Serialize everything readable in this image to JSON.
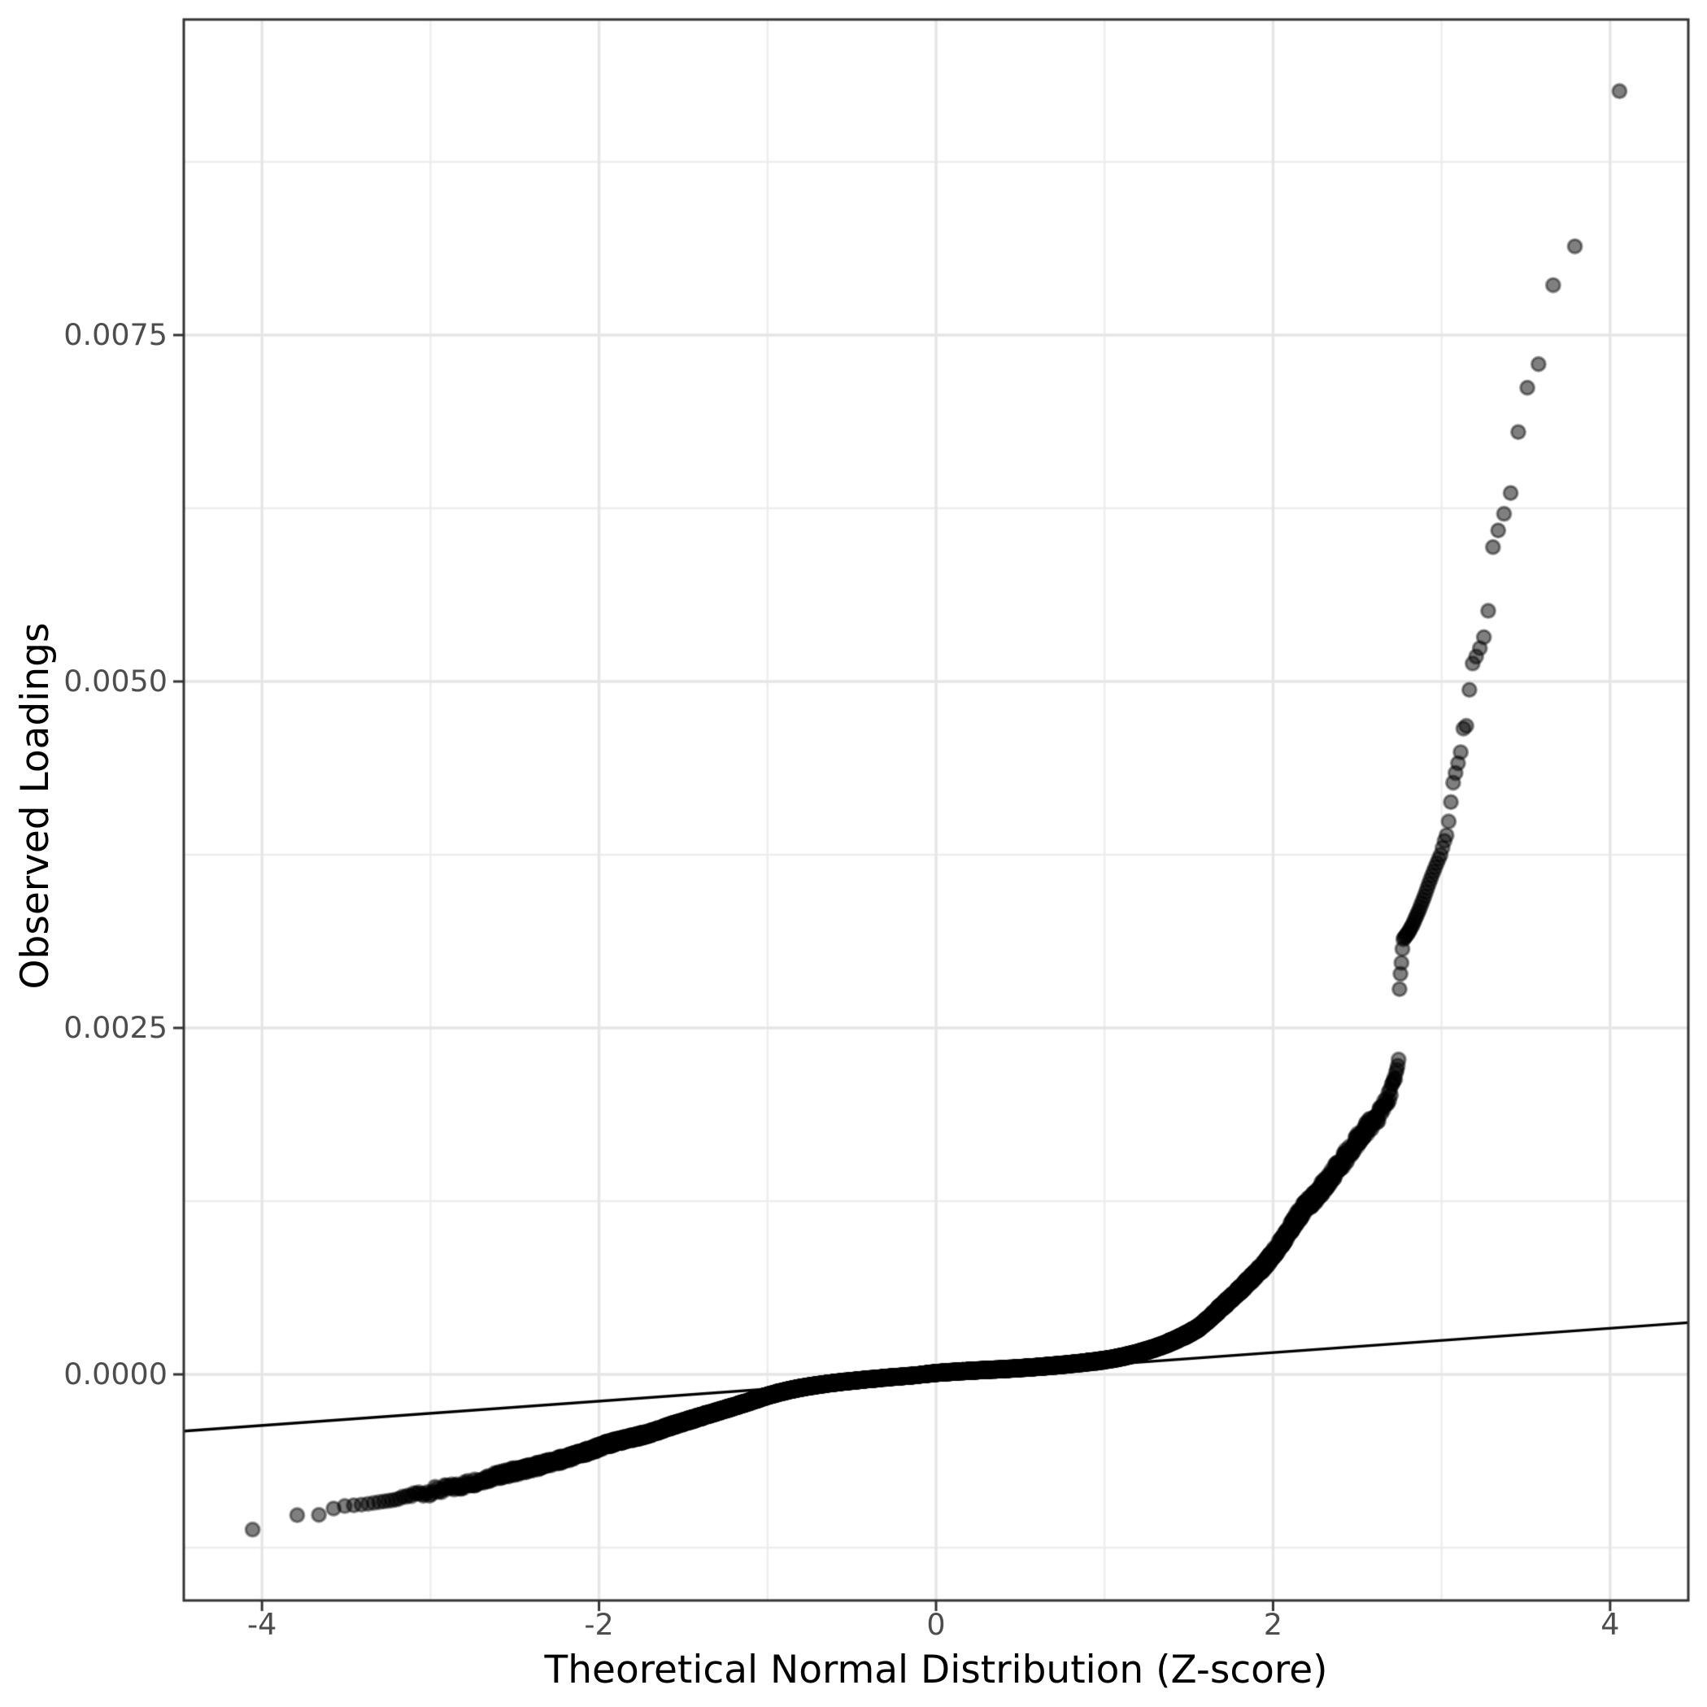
{
  "chart_data": {
    "type": "scatter",
    "subtype": "qq-plot",
    "title": "",
    "xlabel": "Theoretical Normal Distribution (Z-score)",
    "ylabel": "Observed Loadings",
    "x_ticks": [
      {
        "value": -4,
        "label": "-4"
      },
      {
        "value": -2,
        "label": "-2"
      },
      {
        "value": 0,
        "label": "0"
      },
      {
        "value": 2,
        "label": "2"
      },
      {
        "value": 4,
        "label": "4"
      }
    ],
    "y_ticks": [
      {
        "value": 0.0075,
        "label": "0.0075"
      },
      {
        "value": 0.005,
        "label": "0.0050"
      },
      {
        "value": 0.0025,
        "label": "0.0025"
      },
      {
        "value": 0.0,
        "label": "0.0000"
      }
    ],
    "x_minor": [
      -3,
      -1,
      1,
      3
    ],
    "y_minor": [
      0.00875,
      0.00625,
      0.00375,
      0.00125,
      -0.00125
    ],
    "xlim": [
      -4.464,
      4.464
    ],
    "ylim": [
      -0.0016315,
      0.009777
    ],
    "grid": true,
    "legend": null,
    "n_points": 20000,
    "x_distribution": "normal plotting positions qnorm((i-0.5)/n), i=1..n",
    "reference_line": {
      "slope": 8.77e-05,
      "intercept": -1.8e-05,
      "color": "#000000"
    },
    "point_style": {
      "radius": 8.4,
      "fill": "rgba(0,0,0,0.50)",
      "stroke": "rgba(0,0,0,0.42)",
      "stroke_width": 3.2
    },
    "upper_tail_loadings": [
      0.00926,
      0.00814,
      0.00786,
      0.00729,
      0.00712,
      0.0068,
      0.00636,
      0.00621,
      0.00609,
      0.00597,
      0.00551,
      0.00532,
      0.00524,
      0.00518,
      0.00513,
      0.00494,
      0.00468,
      0.00466,
      0.00449,
      0.00441,
      0.00434,
      0.00427,
      0.00413,
      0.00399,
      0.00389,
      0.00385,
      0.0038,
      0.00375,
      0.00372,
      0.00369,
      0.00366,
      0.00363,
      0.0036,
      0.00357,
      0.00354,
      0.00351,
      0.00348,
      0.00345,
      0.003425,
      0.0034,
      0.003375,
      0.00335,
      0.00333,
      0.00331,
      0.00329,
      0.00327,
      0.00325,
      0.003235,
      0.00322,
      0.003205,
      0.00319,
      0.00318,
      0.00317,
      0.00316,
      0.00315,
      0.00314,
      0.00307,
      0.00297,
      0.00289,
      0.00278
    ],
    "lower_tail_loadings": [
      -0.00112,
      -0.001016,
      -0.001014,
      -0.000968,
      -0.00095,
      -0.000945,
      -0.00094,
      -0.000934,
      -0.000928,
      -0.000922,
      -0.000917,
      -0.000912,
      -0.000908
    ],
    "quantile_curve": {
      "z": [
        -3.205,
        -3.14,
        -3.0,
        -2.9,
        -2.78,
        -2.66,
        -2.54,
        -2.42,
        -2.3,
        -2.18,
        -2.06,
        -1.94,
        -1.82,
        -1.7,
        -1.58,
        -1.45,
        -1.33,
        -1.21,
        -1.09,
        -0.97,
        -0.85,
        -0.73,
        -0.61,
        -0.49,
        -0.37,
        -0.25,
        -0.12,
        0.0,
        0.12,
        0.23,
        0.35,
        0.47,
        0.59,
        0.71,
        0.83,
        0.95,
        1.07,
        1.19,
        1.31,
        1.44,
        1.56,
        1.68,
        1.82,
        1.97,
        2.06,
        2.16,
        2.28,
        2.4,
        2.52,
        2.6,
        2.65,
        2.7,
        2.73,
        2.754
      ],
      "loading": [
        -0.000904,
        -0.00088,
        -0.000845,
        -0.000825,
        -0.00079,
        -0.000748,
        -0.000712,
        -0.000678,
        -0.00064,
        -0.0006,
        -0.000552,
        -0.0005,
        -0.000462,
        -0.000425,
        -0.000375,
        -0.000325,
        -0.00028,
        -0.000236,
        -0.00019,
        -0.000144,
        -0.000108,
        -8.2e-05,
        -6.2e-05,
        -4.6e-05,
        -3.2e-05,
        -1.9e-05,
        -6e-06,
        1e-05,
        2e-05,
        2.8e-05,
        3.5e-05,
        4.3e-05,
        5.3e-05,
        6.5e-05,
        7.9e-05,
        9.5e-05,
        0.000118,
        0.000152,
        0.000195,
        0.00026,
        0.00034,
        0.00047,
        0.00063,
        0.00082,
        0.00097,
        0.00116,
        0.00133,
        0.00152,
        0.00172,
        0.00184,
        0.00192,
        0.00206,
        0.00217,
        0.00234
      ]
    },
    "band_jitter": {
      "base_pos": 7e-06,
      "rel_pos": 0.032,
      "cap_pos": 5e-05,
      "base_neg": 6e-06,
      "rel_neg": 0.028,
      "cap_neg": 4e-05
    }
  },
  "style": {
    "panel_border": "#333333",
    "grid_major": "#e6e6e6",
    "grid_minor": "#ededed",
    "tick_color": "#333333",
    "tick_label_color": "#4d4d4d",
    "title_color": "#000000",
    "background": "#ffffff"
  }
}
